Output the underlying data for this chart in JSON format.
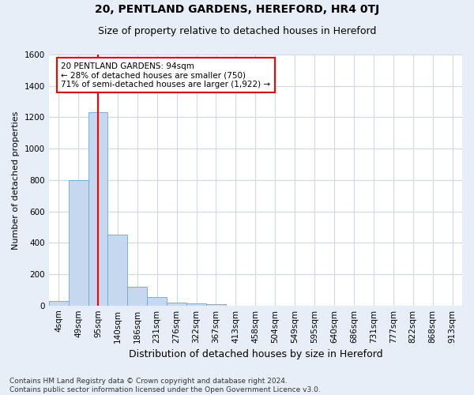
{
  "title1": "20, PENTLAND GARDENS, HEREFORD, HR4 0TJ",
  "title2": "Size of property relative to detached houses in Hereford",
  "xlabel": "Distribution of detached houses by size in Hereford",
  "ylabel": "Number of detached properties",
  "categories": [
    "4sqm",
    "49sqm",
    "95sqm",
    "140sqm",
    "186sqm",
    "231sqm",
    "276sqm",
    "322sqm",
    "367sqm",
    "413sqm",
    "458sqm",
    "504sqm",
    "549sqm",
    "595sqm",
    "640sqm",
    "686sqm",
    "731sqm",
    "777sqm",
    "822sqm",
    "868sqm",
    "913sqm"
  ],
  "values": [
    30,
    800,
    1230,
    450,
    120,
    55,
    20,
    15,
    10,
    0,
    0,
    0,
    0,
    0,
    0,
    0,
    0,
    0,
    0,
    0,
    0
  ],
  "bar_color": "#c5d8f0",
  "bar_edge_color": "#6fa8d0",
  "vline_x": 2,
  "vline_color": "red",
  "annotation_line1": "20 PENTLAND GARDENS: 94sqm",
  "annotation_line2": "← 28% of detached houses are smaller (750)",
  "annotation_line3": "71% of semi-detached houses are larger (1,922) →",
  "annotation_box_color": "red",
  "ylim": [
    0,
    1600
  ],
  "yticks": [
    0,
    200,
    400,
    600,
    800,
    1000,
    1200,
    1400,
    1600
  ],
  "footer": "Contains HM Land Registry data © Crown copyright and database right 2024.\nContains public sector information licensed under the Open Government Licence v3.0.",
  "fig_bg_color": "#e8eef7",
  "plot_bg_color": "#ffffff",
  "grid_color": "#d0d8e8",
  "title1_fontsize": 10,
  "title2_fontsize": 9,
  "xlabel_fontsize": 9,
  "ylabel_fontsize": 8,
  "tick_fontsize": 7.5,
  "footer_fontsize": 6.5
}
